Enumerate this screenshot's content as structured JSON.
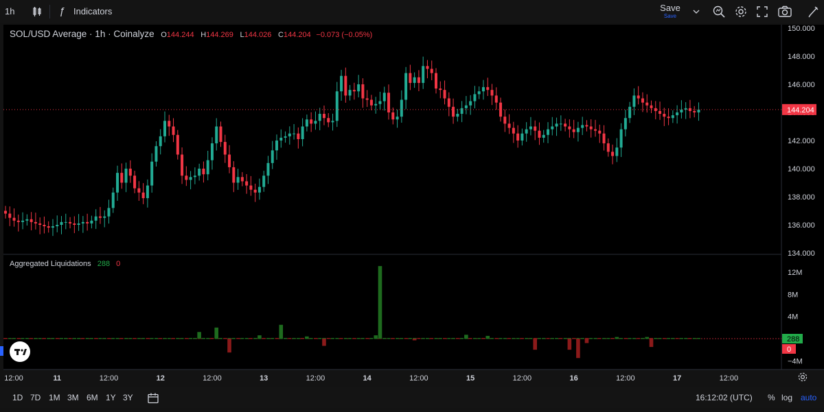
{
  "toolbar": {
    "interval": "1h",
    "indicators_label": "Indicators",
    "save_label": "Save",
    "save_sub_label": "Save",
    "icons": [
      "bar-style-icon",
      "fx-icon",
      "chevron-down-icon",
      "search-zoom-icon",
      "gear-icon",
      "fullscreen-icon",
      "camera-icon",
      "pencil-icon"
    ]
  },
  "legend": {
    "title": "SOL/USD Average · 1h · Coinalyze",
    "o_key": "O",
    "o_val": "144.244",
    "h_key": "H",
    "h_val": "144.269",
    "l_key": "L",
    "l_val": "144.026",
    "c_key": "C",
    "c_val": "144.204",
    "change": "−0.073 (−0.05%)"
  },
  "liq_legend": {
    "title": "Aggregated Liquidations",
    "long_val": "288",
    "short_val": "0"
  },
  "colors": {
    "up": "#22ab94",
    "down": "#f23645",
    "liq_long": "#1e6b1e",
    "liq_short": "#8b1a1a",
    "background": "#000000",
    "grid": "#1c1c1c"
  },
  "chart_data": [
    {
      "type": "candlestick",
      "title": "SOL/USD Average · 1h · Coinalyze",
      "ylim": [
        134,
        150
      ],
      "y_ticks": [
        "134.000",
        "136.000",
        "138.000",
        "140.000",
        "142.000",
        "144.000",
        "146.000",
        "148.000",
        "150.000"
      ],
      "y_tick_values": [
        134,
        136,
        138,
        140,
        142,
        144,
        146,
        148,
        150
      ],
      "last_price_label": "144.204",
      "last_price": 144.204,
      "x_ticks": [
        "12:00",
        "11",
        "12:00",
        "12",
        "12:00",
        "13",
        "12:00",
        "14",
        "12:00",
        "15",
        "12:00",
        "16",
        "12:00",
        "17",
        "12:00"
      ],
      "x_tick_hours": [
        0,
        12,
        24,
        36,
        48,
        60,
        72,
        84,
        96,
        108,
        120,
        132,
        144,
        156,
        168
      ],
      "start_hour": 0,
      "close": [
        136.8,
        136.5,
        136.3,
        136.2,
        136.3,
        136.4,
        136.2,
        136.1,
        136.0,
        135.9,
        135.8,
        135.9,
        136.0,
        136.2,
        136.2,
        136.1,
        136.0,
        136.1,
        136.2,
        136.1,
        136.3,
        136.6,
        136.5,
        136.6,
        137.2,
        138.3,
        139.7,
        139.0,
        140.0,
        139.5,
        138.6,
        138.3,
        137.9,
        138.8,
        140.5,
        141.6,
        142.3,
        143.4,
        143.0,
        142.4,
        141.0,
        139.5,
        139.2,
        139.4,
        139.5,
        140.0,
        139.6,
        140.6,
        141.8,
        143.0,
        141.9,
        141.0,
        140.1,
        139.0,
        139.4,
        139.1,
        138.8,
        138.5,
        138.3,
        138.7,
        139.5,
        140.4,
        141.3,
        142.0,
        142.2,
        142.3,
        142.5,
        142.5,
        142.1,
        143.0,
        143.5,
        143.2,
        143.4,
        143.9,
        143.6,
        143.3,
        143.4,
        145.5,
        146.6,
        145.2,
        145.6,
        145.5,
        146.0,
        145.0,
        144.9,
        144.5,
        144.6,
        144.8,
        145.4,
        144.0,
        143.5,
        143.7,
        144.9,
        146.8,
        146.1,
        146.5,
        146.1,
        147.3,
        147.1,
        146.8,
        145.7,
        145.6,
        145.0,
        144.4,
        143.7,
        143.9,
        144.3,
        144.5,
        144.8,
        145.3,
        145.5,
        145.8,
        145.6,
        145.2,
        144.7,
        143.7,
        143.2,
        142.9,
        142.5,
        142.0,
        142.5,
        142.8,
        143.0,
        142.7,
        142.2,
        142.4,
        142.8,
        143.0,
        143.2,
        143.2,
        143.0,
        142.8,
        142.6,
        142.9,
        143.1,
        143.0,
        142.8,
        142.7,
        142.5,
        141.8,
        141.2,
        140.9,
        141.5,
        142.8,
        143.6,
        144.4,
        145.2,
        145.0,
        144.7,
        144.5,
        144.3,
        144.1,
        143.9,
        143.7,
        143.6,
        143.8,
        144.0,
        144.2,
        144.3,
        144.1,
        144.0,
        144.204
      ],
      "open_start": 137.0
    },
    {
      "type": "bar",
      "title": "Aggregated Liquidations",
      "ylim": [
        -6,
        14
      ],
      "y_ticks": [
        "12M",
        "8M",
        "4M",
        "−4M"
      ],
      "y_tick_values": [
        12,
        8,
        4,
        -4
      ],
      "current_long_label": "288",
      "current_short_label": "0",
      "long_index": [
        45,
        49,
        59,
        64,
        70,
        86,
        87,
        107,
        112,
        142,
        149
      ],
      "long_values": [
        1.2,
        2.0,
        0.6,
        2.5,
        0.4,
        0.6,
        13.1,
        0.7,
        0.5,
        0.3,
        0.3
      ],
      "short_index": [
        52,
        74,
        95,
        123,
        131,
        133,
        135,
        150
      ],
      "short_values": [
        -2.5,
        -1.3,
        -0.3,
        -2.0,
        -2.0,
        -3.5,
        -0.8,
        -1.5
      ]
    }
  ],
  "bottombar": {
    "ranges": [
      "1D",
      "7D",
      "1M",
      "3M",
      "6M",
      "1Y",
      "3Y"
    ],
    "clock": "16:12:02 (UTC)",
    "percent_label": "%",
    "log_label": "log",
    "auto_label": "auto"
  }
}
